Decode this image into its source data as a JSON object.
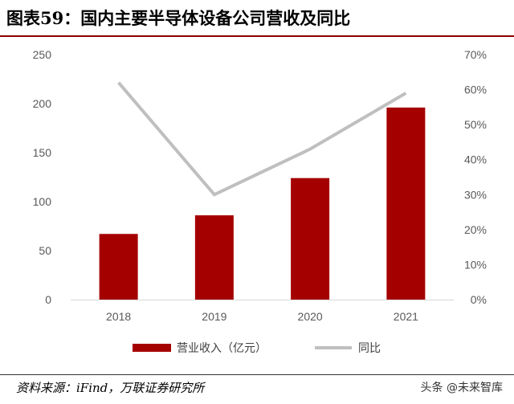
{
  "header": {
    "title": "图表59：国内主要半导体设备公司营收及同比"
  },
  "footer": {
    "source": "资料来源：iFind，万联证券研究所",
    "watermark": "头条 @未来智库"
  },
  "colors": {
    "bar": "#a50000",
    "line": "#bfbfbf"
  },
  "chart_data": {
    "type": "bar",
    "categories": [
      "2018",
      "2019",
      "2020",
      "2021"
    ],
    "series": [
      {
        "name": "营业收入（亿元）",
        "type": "bar",
        "axis": "left",
        "values": [
          67,
          86,
          124,
          196
        ]
      },
      {
        "name": "同比",
        "type": "line",
        "axis": "right",
        "values": [
          62,
          30,
          43,
          59
        ]
      }
    ],
    "y_left": {
      "min": 0,
      "max": 250,
      "step": 50,
      "ticks": [
        "0",
        "50",
        "100",
        "150",
        "200",
        "250"
      ]
    },
    "y_right": {
      "min": 0,
      "max": 70,
      "step": 10,
      "ticks": [
        "0%",
        "10%",
        "20%",
        "30%",
        "40%",
        "50%",
        "60%",
        "70%"
      ]
    },
    "grid": false,
    "legend_position": "bottom"
  }
}
